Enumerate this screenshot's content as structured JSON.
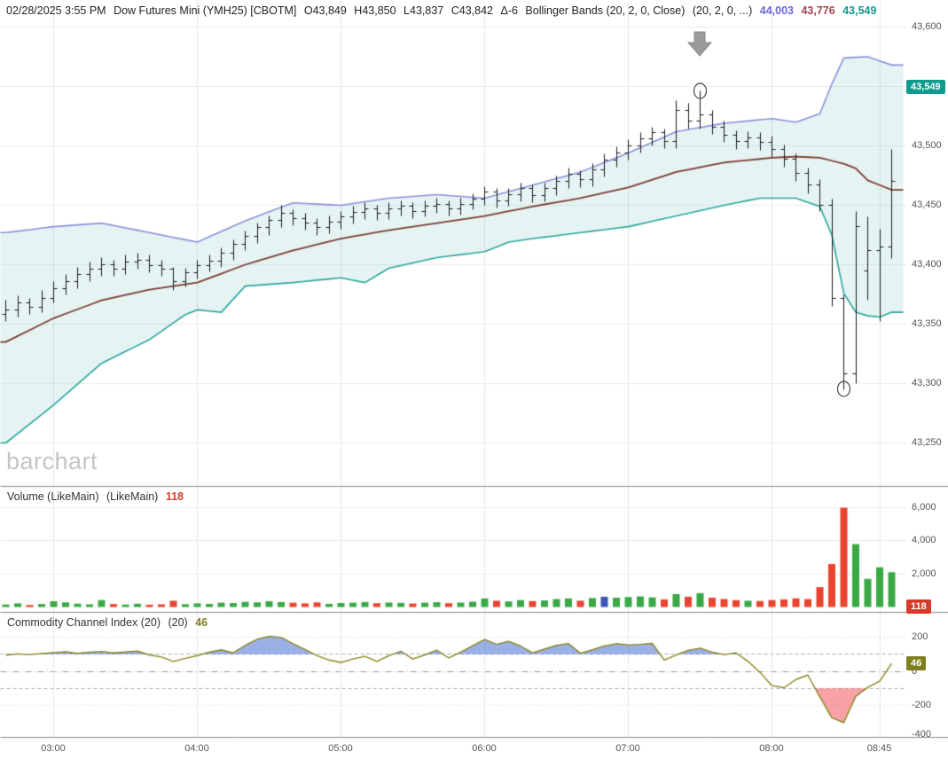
{
  "header": {
    "datetime": "02/28/2025 3:55 PM",
    "title": "Dow Futures Mini (YMH25) [CBOTM]",
    "open": "O43,849",
    "high": "H43,850",
    "low": "L43,837",
    "close": "C43,842",
    "change": "Δ-6",
    "study": "Bollinger Bands (20, 2, 0, Close)",
    "study_params": "(20, 2, 0, ...)",
    "band_upper_value": "44,003",
    "band_middle_value": "43,776",
    "band_lower_value": "43,549"
  },
  "watermark": "barchart",
  "panels": {
    "volume": {
      "label": "Volume (LikeMain)",
      "params": "(LikeMain)",
      "value": "118"
    },
    "cci": {
      "label": "Commodity Channel Index (20)",
      "params": "(20)",
      "value": "46"
    }
  },
  "axes": {
    "price_labels": [
      43600,
      43500,
      43450,
      43400,
      43350,
      43300,
      43250
    ],
    "price_badge": "43,549",
    "price_badge_value": 43549,
    "volume_labels": [
      6000,
      4000,
      2000
    ],
    "volume_badge": "118",
    "cci_labels": [
      200,
      0,
      -200,
      -400
    ],
    "cci_badge": "46",
    "cci_badge_value": 46,
    "time_labels": [
      {
        "label": "03:00",
        "bar": 4
      },
      {
        "label": "04:00",
        "bar": 16
      },
      {
        "label": "05:00",
        "bar": 28
      },
      {
        "label": "06:00",
        "bar": 40
      },
      {
        "label": "07:00",
        "bar": 52
      },
      {
        "label": "08:00",
        "bar": 64
      },
      {
        "label": "08:45",
        "bar": 73
      }
    ]
  },
  "chart_data": {
    "type": "ohlc",
    "interval_minutes": 5,
    "start_time": "02:40",
    "price_ylim": [
      43213,
      43622
    ],
    "volume_ylim": [
      0,
      7300
    ],
    "cci_ylim": [
      -400,
      240
    ],
    "cci_thresholds": [
      100,
      -100
    ],
    "bars_ohlc": [
      [
        43358,
        43370,
        43352,
        43362
      ],
      [
        43362,
        43374,
        43356,
        43368
      ],
      [
        43368,
        43372,
        43358,
        43364
      ],
      [
        43364,
        43378,
        43360,
        43372
      ],
      [
        43372,
        43386,
        43368,
        43380
      ],
      [
        43380,
        43392,
        43375,
        43386
      ],
      [
        43386,
        43398,
        43380,
        43392
      ],
      [
        43392,
        43402,
        43386,
        43396
      ],
      [
        43396,
        43406,
        43390,
        43400
      ],
      [
        43400,
        43404,
        43390,
        43396
      ],
      [
        43396,
        43408,
        43392,
        43402
      ],
      [
        43402,
        43410,
        43396,
        43404
      ],
      [
        43404,
        43408,
        43393,
        43399
      ],
      [
        43399,
        43404,
        43390,
        43396
      ],
      [
        43396,
        43398,
        43378,
        43386
      ],
      [
        43386,
        43397,
        43381,
        43393
      ],
      [
        43393,
        43404,
        43388,
        43399
      ],
      [
        43399,
        43408,
        43394,
        43403
      ],
      [
        43403,
        43414,
        43398,
        43410
      ],
      [
        43410,
        43421,
        43404,
        43417
      ],
      [
        43417,
        43428,
        43412,
        43424
      ],
      [
        43424,
        43435,
        43418,
        43431
      ],
      [
        43431,
        43441,
        43425,
        43437
      ],
      [
        43437,
        43450,
        43431,
        43443
      ],
      [
        43443,
        43446,
        43433,
        43439
      ],
      [
        43439,
        43443,
        43429,
        43435
      ],
      [
        43435,
        43439,
        43425,
        43431
      ],
      [
        43431,
        43441,
        43426,
        43436
      ],
      [
        43436,
        43445,
        43430,
        43440
      ],
      [
        43440,
        43449,
        43434,
        43444
      ],
      [
        43444,
        43452,
        43438,
        43447
      ],
      [
        43447,
        43450,
        43437,
        43443
      ],
      [
        43443,
        43452,
        43438,
        43447
      ],
      [
        43447,
        43454,
        43441,
        43449
      ],
      [
        43449,
        43452,
        43439,
        43445
      ],
      [
        43445,
        43454,
        43440,
        43449
      ],
      [
        43449,
        43456,
        43443,
        43451
      ],
      [
        43451,
        43454,
        43441,
        43447
      ],
      [
        43447,
        43456,
        43442,
        43451
      ],
      [
        43451,
        43460,
        43446,
        43455
      ],
      [
        43455,
        43466,
        43450,
        43461
      ],
      [
        43461,
        43464,
        43448,
        43454
      ],
      [
        43454,
        43464,
        43449,
        43459
      ],
      [
        43459,
        43469,
        43453,
        43464
      ],
      [
        43464,
        43467,
        43452,
        43458
      ],
      [
        43458,
        43469,
        43453,
        43464
      ],
      [
        43464,
        43475,
        43458,
        43470
      ],
      [
        43470,
        43481,
        43464,
        43476
      ],
      [
        43476,
        43479,
        43465,
        43472
      ],
      [
        43472,
        43485,
        43466,
        43480
      ],
      [
        43480,
        43493,
        43474,
        43488
      ],
      [
        43488,
        43499,
        43482,
        43494
      ],
      [
        43494,
        43505,
        43488,
        43500
      ],
      [
        43500,
        43511,
        43494,
        43506
      ],
      [
        43506,
        43516,
        43500,
        43511
      ],
      [
        43511,
        43514,
        43498,
        43504
      ],
      [
        43504,
        43538,
        43498,
        43530
      ],
      [
        43530,
        43536,
        43514,
        43521
      ],
      [
        43521,
        43546,
        43514,
        43526
      ],
      [
        43526,
        43530,
        43510,
        43516
      ],
      [
        43516,
        43521,
        43503,
        43509
      ],
      [
        43509,
        43513,
        43497,
        43504
      ],
      [
        43504,
        43512,
        43498,
        43507
      ],
      [
        43507,
        43511,
        43496,
        43503
      ],
      [
        43503,
        43508,
        43490,
        43497
      ],
      [
        43497,
        43501,
        43482,
        43489
      ],
      [
        43489,
        43493,
        43470,
        43477
      ],
      [
        43477,
        43481,
        43460,
        43467
      ],
      [
        43467,
        43472,
        43445,
        43450
      ],
      [
        43450,
        43455,
        43365,
        43372
      ],
      [
        43372,
        43375,
        43295,
        43308
      ],
      [
        43308,
        43445,
        43300,
        43432
      ],
      [
        43395,
        43440,
        43370,
        43412
      ],
      [
        43412,
        43430,
        43352,
        43415
      ],
      [
        43415,
        43497,
        43405,
        43470
      ]
    ],
    "volume": [
      150,
      220,
      120,
      180,
      350,
      280,
      200,
      160,
      420,
      180,
      150,
      200,
      140,
      160,
      380,
      170,
      220,
      190,
      260,
      240,
      310,
      280,
      350,
      300,
      260,
      220,
      280,
      190,
      240,
      260,
      300,
      230,
      270,
      250,
      210,
      260,
      290,
      230,
      270,
      320,
      520,
      380,
      340,
      420,
      360,
      400,
      480,
      520,
      380,
      540,
      620,
      560,
      600,
      640,
      580,
      460,
      780,
      620,
      840,
      560,
      480,
      420,
      380,
      360,
      420,
      460,
      520,
      480,
      1200,
      2600,
      6000,
      3800,
      1700,
      2400,
      2100
    ],
    "volume_color_overrides": {
      "50": "#3a55b4"
    },
    "cci": [
      95,
      102,
      98,
      104,
      110,
      114,
      106,
      112,
      116,
      108,
      113,
      118,
      96,
      84,
      58,
      76,
      92,
      112,
      126,
      108,
      152,
      188,
      205,
      198,
      162,
      128,
      92,
      66,
      52,
      72,
      88,
      58,
      92,
      118,
      72,
      96,
      124,
      78,
      112,
      150,
      186,
      158,
      176,
      148,
      108,
      130,
      152,
      162,
      106,
      126,
      148,
      162,
      154,
      158,
      164,
      66,
      96,
      122,
      136,
      112,
      98,
      108,
      58,
      -6,
      -84,
      -96,
      -48,
      -22,
      -150,
      -272,
      -300,
      -146,
      -94,
      -58,
      46
    ],
    "bollinger_upper_keypoints": [
      [
        0,
        43427
      ],
      [
        4,
        43432
      ],
      [
        8,
        43435
      ],
      [
        12,
        43427
      ],
      [
        16,
        43419
      ],
      [
        20,
        43437
      ],
      [
        24,
        43452
      ],
      [
        28,
        43450
      ],
      [
        32,
        43456
      ],
      [
        36,
        43459
      ],
      [
        40,
        43456
      ],
      [
        44,
        43467
      ],
      [
        48,
        43478
      ],
      [
        52,
        43494
      ],
      [
        56,
        43512
      ],
      [
        60,
        43519
      ],
      [
        64,
        43523
      ],
      [
        66,
        43520
      ],
      [
        68,
        43527
      ],
      [
        69,
        43552
      ],
      [
        70,
        43574
      ],
      [
        72,
        43575
      ],
      [
        74,
        43568
      ]
    ],
    "bollinger_middle_keypoints": [
      [
        0,
        43335
      ],
      [
        4,
        43355
      ],
      [
        8,
        43370
      ],
      [
        12,
        43379
      ],
      [
        16,
        43385
      ],
      [
        20,
        43400
      ],
      [
        24,
        43412
      ],
      [
        28,
        43422
      ],
      [
        32,
        43429
      ],
      [
        36,
        43435
      ],
      [
        40,
        43441
      ],
      [
        44,
        43449
      ],
      [
        48,
        43456
      ],
      [
        52,
        43465
      ],
      [
        56,
        43478
      ],
      [
        60,
        43486
      ],
      [
        64,
        43490
      ],
      [
        66,
        43491
      ],
      [
        68,
        43490
      ],
      [
        70,
        43485
      ],
      [
        71,
        43481
      ],
      [
        72,
        43471
      ],
      [
        73,
        43467
      ],
      [
        74,
        43463
      ]
    ],
    "bollinger_lower_keypoints": [
      [
        0,
        43250
      ],
      [
        4,
        43282
      ],
      [
        8,
        43317
      ],
      [
        12,
        43337
      ],
      [
        15,
        43358
      ],
      [
        16,
        43362
      ],
      [
        18,
        43360
      ],
      [
        20,
        43382
      ],
      [
        24,
        43385
      ],
      [
        28,
        43389
      ],
      [
        30,
        43385
      ],
      [
        32,
        43397
      ],
      [
        36,
        43406
      ],
      [
        40,
        43411
      ],
      [
        42,
        43419
      ],
      [
        44,
        43422
      ],
      [
        48,
        43427
      ],
      [
        52,
        43432
      ],
      [
        56,
        43441
      ],
      [
        60,
        43450
      ],
      [
        63,
        43456
      ],
      [
        66,
        43456
      ],
      [
        68,
        43449
      ],
      [
        69,
        43425
      ],
      [
        70,
        43376
      ],
      [
        71,
        43360
      ],
      [
        72,
        43357
      ],
      [
        73,
        43356
      ],
      [
        74,
        43360
      ]
    ],
    "annotations": {
      "arrow_bar": 58,
      "circle_high": {
        "bar": 58,
        "price": 43546
      },
      "circle_low": {
        "bar": 70,
        "price": 43295
      }
    }
  },
  "colors": {
    "bar": "#1a1a1a",
    "band_upper": "#8e8edd",
    "band_middle": "#7e3d33",
    "band_lower": "#2aa79d",
    "band_fill": "rgba(42,167,157,0.12)",
    "volume_up": "#3aa845",
    "volume_down": "#e8442e",
    "cci_line": "#87871e",
    "cci_fill_high": "rgba(90,123,216,0.60)",
    "cci_fill_low": "rgba(242,85,96,0.55)",
    "grid": "#ececec",
    "vgrid": "#e6e6e6",
    "divider": "#8c8c8c",
    "annotation_gray": "#9b9b9b",
    "annotation_circle": "#4a4a4a"
  }
}
